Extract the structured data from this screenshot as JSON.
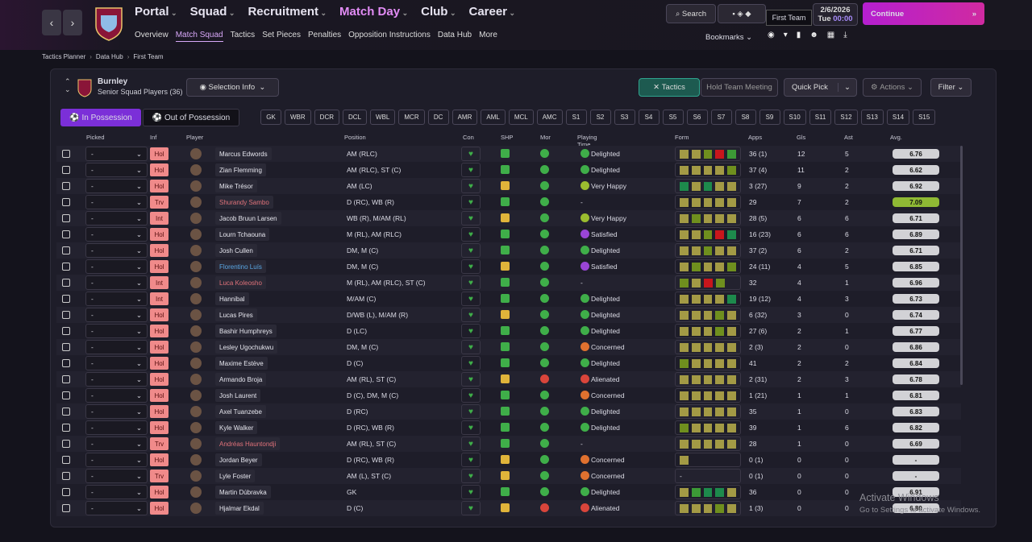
{
  "nav": {
    "main": [
      "Portal",
      "Squad",
      "Recruitment",
      "Match Day",
      "Club",
      "Career"
    ],
    "sub": [
      "Overview",
      "Match Squad",
      "Tactics",
      "Set Pieces",
      "Penalties",
      "Opposition Instructions",
      "Data Hub",
      "More"
    ],
    "search": "Search",
    "tooltip": "First Team",
    "date": "2/6/2026",
    "day": "Tue",
    "time": "00:00",
    "continue": "Continue",
    "bookmarks": "Bookmarks"
  },
  "breadcrumb": [
    "Tactics Planner",
    "Data Hub",
    "First Team"
  ],
  "club": {
    "name": "Burnley",
    "subtitle": "Senior Squad Players (36)"
  },
  "buttons": {
    "selection_info": "Selection Info",
    "tactics": "Tactics",
    "team_meeting": "Hold Team Meeting",
    "quick_pick": "Quick Pick",
    "actions": "Actions",
    "filter": "Filter"
  },
  "tabs": [
    "In Possession",
    "Out of Possession"
  ],
  "positions": [
    "GK",
    "WBR",
    "DCR",
    "DCL",
    "WBL",
    "MCR",
    "DC",
    "AMR",
    "AML",
    "MCL",
    "AMC",
    "S1",
    "S2",
    "S3",
    "S4",
    "S5",
    "S6",
    "S7",
    "S8",
    "S9",
    "S10",
    "S11",
    "S12",
    "S13",
    "S14",
    "S15"
  ],
  "form_palette": {
    "y": "#a39a45",
    "o": "#6f8f1e",
    "g": "#3c9a36",
    "G": "#1d8a4c",
    "r": "#c8161c"
  },
  "table": {
    "columns": [
      "Picked",
      "Inf",
      "Player",
      "Position",
      "Con",
      "SHP",
      "Mor",
      "Playing Time Happiness",
      "Form",
      "Apps",
      "Gls",
      "Ast",
      "Avg."
    ],
    "rows": [
      {
        "picked": "-",
        "inf": "Hol",
        "player": "Marcus Edwords",
        "position": "AM (RLC)",
        "shp": "#3fae49",
        "mor": "#3fae49",
        "happiness": "Delighted",
        "mood": "#3fae49",
        "form": "yyorg",
        "apps": "36 (1)",
        "gls": 12,
        "ast": 5,
        "avg": "6.76"
      },
      {
        "picked": "-",
        "inf": "Hol",
        "player": "Zian Flemming",
        "position": "AM (RLC), ST (C)",
        "shp": "#3fae49",
        "mor": "#3fae49",
        "happiness": "Delighted",
        "mood": "#3fae49",
        "form": "yyyyo",
        "apps": "37 (4)",
        "gls": 11,
        "ast": 2,
        "avg": "6.62"
      },
      {
        "picked": "-",
        "inf": "Hol",
        "player": "Mike Trésor",
        "position": "AM (LC)",
        "shp": "#e0b43a",
        "mor": "#3fae49",
        "happiness": "Very Happy",
        "mood": "#9bbd2f",
        "form": "GyGyy",
        "apps": "3 (27)",
        "gls": 9,
        "ast": 2,
        "avg": "6.92"
      },
      {
        "picked": "-",
        "inf": "Trv",
        "player": "Shurandy Sambo",
        "name_color": "#e0727a",
        "position": "D (RC), WB (R)",
        "shp": "#3fae49",
        "mor": "#3fae49",
        "happiness": "-",
        "mood": null,
        "form": "yyyyy",
        "apps": "29",
        "gls": 7,
        "ast": 2,
        "avg": "7.09",
        "avg_color": "#8fb934"
      },
      {
        "picked": "-",
        "inf": "Int",
        "player": "Jacob Bruun Larsen",
        "position": "WB (R), M/AM (RL)",
        "shp": "#e0b43a",
        "mor": "#3fae49",
        "happiness": "Very Happy",
        "mood": "#9bbd2f",
        "form": "yoyyy",
        "apps": "28 (5)",
        "gls": 6,
        "ast": 6,
        "avg": "6.71"
      },
      {
        "picked": "-",
        "inf": "Hol",
        "player": "Lourn Tchaouna",
        "position": "M (RL), AM (RLC)",
        "shp": "#3fae49",
        "mor": "#3fae49",
        "happiness": "Satisfied",
        "mood": "#9a45d6",
        "form": "yyorG",
        "apps": "16 (23)",
        "gls": 6,
        "ast": 6,
        "avg": "6.89"
      },
      {
        "picked": "-",
        "inf": "Hol",
        "player": "Josh Cullen",
        "position": "DM, M (C)",
        "shp": "#3fae49",
        "mor": "#3fae49",
        "happiness": "Delighted",
        "mood": "#3fae49",
        "form": "yyoyy",
        "apps": "37 (2)",
        "gls": 6,
        "ast": 2,
        "avg": "6.71"
      },
      {
        "picked": "-",
        "inf": "Hol",
        "player": "Florentino Luís",
        "name_color": "#5aa8e6",
        "position": "DM, M (C)",
        "shp": "#e0b43a",
        "mor": "#3fae49",
        "happiness": "Satisfied",
        "mood": "#9a45d6",
        "form": "yoyyo",
        "apps": "24 (11)",
        "gls": 4,
        "ast": 5,
        "avg": "6.85"
      },
      {
        "picked": "-",
        "inf": "Int",
        "player": "Luca Koleosho",
        "name_color": "#e0727a",
        "position": "M (RL), AM (RLC), ST (C)",
        "shp": "#3fae49",
        "mor": "#3fae49",
        "happiness": "-",
        "mood": null,
        "form": "oyro",
        "apps": "32",
        "gls": 4,
        "ast": 1,
        "avg": "6.96"
      },
      {
        "picked": "-",
        "inf": "Int",
        "player": "Hannibal",
        "position": "M/AM (C)",
        "shp": "#3fae49",
        "mor": "#3fae49",
        "happiness": "Delighted",
        "mood": "#3fae49",
        "form": "yyyyG",
        "apps": "19 (12)",
        "gls": 4,
        "ast": 3,
        "avg": "6.73"
      },
      {
        "picked": "-",
        "inf": "Hol",
        "player": "Lucas Pires",
        "position": "D/WB (L), M/AM (R)",
        "shp": "#e0b43a",
        "mor": "#3fae49",
        "happiness": "Delighted",
        "mood": "#3fae49",
        "form": "yyyoy",
        "apps": "6 (32)",
        "gls": 3,
        "ast": 0,
        "avg": "6.74"
      },
      {
        "picked": "-",
        "inf": "Hol",
        "player": "Bashir Humphreys",
        "position": "D (LC)",
        "shp": "#3fae49",
        "mor": "#3fae49",
        "happiness": "Delighted",
        "mood": "#3fae49",
        "form": "yyyoy",
        "apps": "27 (6)",
        "gls": 2,
        "ast": 1,
        "avg": "6.77"
      },
      {
        "picked": "-",
        "inf": "Hol",
        "player": "Lesley Ugochukwu",
        "position": "DM, M (C)",
        "shp": "#3fae49",
        "mor": "#3fae49",
        "happiness": "Concerned",
        "mood": "#e0712f",
        "form": "yyyyy",
        "apps": "2 (3)",
        "gls": 2,
        "ast": 0,
        "avg": "6.86"
      },
      {
        "picked": "-",
        "inf": "Hol",
        "player": "Maxime Estève",
        "position": "D (C)",
        "shp": "#3fae49",
        "mor": "#3fae49",
        "happiness": "Delighted",
        "mood": "#3fae49",
        "form": "oyyyy",
        "apps": "41",
        "gls": 2,
        "ast": 2,
        "avg": "6.84"
      },
      {
        "picked": "-",
        "inf": "Hol",
        "player": "Armando Broja",
        "position": "AM (RL), ST (C)",
        "shp": "#e0b43a",
        "mor": "#d9453b",
        "happiness": "Alienated",
        "mood": "#d9453b",
        "form": "yyyyy",
        "apps": "2 (31)",
        "gls": 2,
        "ast": 3,
        "avg": "6.78"
      },
      {
        "picked": "-",
        "inf": "Hol",
        "player": "Josh Laurent",
        "position": "D (C), DM, M (C)",
        "shp": "#3fae49",
        "mor": "#3fae49",
        "happiness": "Concerned",
        "mood": "#e0712f",
        "form": "yyyyy",
        "apps": "1 (21)",
        "gls": 1,
        "ast": 1,
        "avg": "6.81"
      },
      {
        "picked": "-",
        "inf": "Hol",
        "player": "Axel Tuanzebe",
        "position": "D (RC)",
        "shp": "#3fae49",
        "mor": "#3fae49",
        "happiness": "Delighted",
        "mood": "#3fae49",
        "form": "yyyyy",
        "apps": "35",
        "gls": 1,
        "ast": 0,
        "avg": "6.83"
      },
      {
        "picked": "-",
        "inf": "Hol",
        "player": "Kyle Walker",
        "position": "D (RC), WB (R)",
        "shp": "#3fae49",
        "mor": "#3fae49",
        "happiness": "Delighted",
        "mood": "#3fae49",
        "form": "oyyyy",
        "apps": "39",
        "gls": 1,
        "ast": 6,
        "avg": "6.82"
      },
      {
        "picked": "-",
        "inf": "Trv",
        "player": "Andréas Hauntondji",
        "name_color": "#e0727a",
        "position": "AM (RL), ST (C)",
        "shp": "#3fae49",
        "mor": "#3fae49",
        "happiness": "-",
        "mood": null,
        "form": "yyyyy",
        "apps": "28",
        "gls": 1,
        "ast": 0,
        "avg": "6.69"
      },
      {
        "picked": "-",
        "inf": "Hol",
        "player": "Jordan Beyer",
        "position": "D (RC), WB (R)",
        "shp": "#e0b43a",
        "mor": "#3fae49",
        "happiness": "Concerned",
        "mood": "#e0712f",
        "form": "y",
        "apps": "0 (1)",
        "gls": 0,
        "ast": 0,
        "avg": "-"
      },
      {
        "picked": "-",
        "inf": "Trv",
        "player": "Lyle Foster",
        "position": "AM (L), ST (C)",
        "shp": "#e0b43a",
        "mor": "#3fae49",
        "happiness": "Concerned",
        "mood": "#e0712f",
        "form_text": "-",
        "apps": "0 (1)",
        "gls": 0,
        "ast": 0,
        "avg": "-"
      },
      {
        "picked": "-",
        "inf": "Hol",
        "player": "Martin Dúbravka",
        "position": "GK",
        "shp": "#3fae49",
        "mor": "#3fae49",
        "happiness": "Delighted",
        "mood": "#3fae49",
        "form": "ygGGy",
        "apps": "36",
        "gls": 0,
        "ast": 0,
        "avg": "6.91"
      },
      {
        "picked": "-",
        "inf": "Hol",
        "player": "Hjalmar Ekdal",
        "position": "D (C)",
        "shp": "#e0b43a",
        "mor": "#d9453b",
        "happiness": "Alienated",
        "mood": "#d9453b",
        "form": "yyyoy",
        "apps": "1 (3)",
        "gls": 0,
        "ast": 0,
        "avg": "6.80"
      }
    ]
  },
  "watermark": {
    "title": "Activate Windows",
    "text": "Go to Settings to activate Windows."
  }
}
